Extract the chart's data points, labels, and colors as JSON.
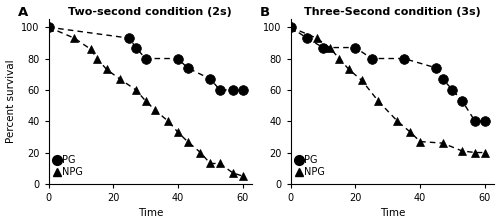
{
  "panel_A": {
    "title": "Two-second condition (2s)",
    "label": "A",
    "PG_x": [
      0,
      25,
      27,
      30,
      40,
      43,
      50,
      53,
      57,
      60
    ],
    "PG_y": [
      100,
      93,
      87,
      80,
      80,
      74,
      67,
      60,
      60,
      60
    ],
    "NPG_x": [
      0,
      8,
      13,
      15,
      18,
      22,
      27,
      30,
      33,
      37,
      40,
      43,
      47,
      50,
      53,
      57,
      60
    ],
    "NPG_y": [
      100,
      93,
      86,
      80,
      73,
      67,
      60,
      53,
      47,
      40,
      33,
      27,
      20,
      13,
      13,
      7,
      5
    ]
  },
  "panel_B": {
    "title": "Three-Second condition (3s)",
    "label": "B",
    "PG_x": [
      0,
      5,
      10,
      20,
      25,
      35,
      45,
      47,
      50,
      53,
      57,
      60
    ],
    "PG_y": [
      100,
      93,
      87,
      87,
      80,
      80,
      74,
      67,
      60,
      53,
      40,
      40
    ],
    "NPG_x": [
      0,
      8,
      12,
      15,
      18,
      22,
      27,
      33,
      37,
      40,
      47,
      53,
      57,
      60
    ],
    "NPG_y": [
      100,
      93,
      87,
      80,
      73,
      66,
      53,
      40,
      33,
      27,
      26,
      21,
      20,
      20
    ]
  },
  "xlabel": "Time",
  "ylabel": "Percent survival",
  "xlim": [
    0,
    63
  ],
  "ylim": [
    0,
    105
  ],
  "xticks": [
    0,
    20,
    40,
    60
  ],
  "yticks": [
    0,
    20,
    40,
    60,
    80,
    100
  ],
  "pg_color": "#000000",
  "npg_color": "#000000",
  "bg_color": "#ffffff",
  "marker_pg": "o",
  "marker_npg": "^",
  "markersize_pg": 7,
  "markersize_npg": 6,
  "linewidth": 1.0,
  "legend_pg": "PG",
  "legend_npg": "NPG",
  "title_fontsize": 8,
  "label_fontsize": 7.5,
  "tick_fontsize": 7,
  "legend_fontsize": 7
}
